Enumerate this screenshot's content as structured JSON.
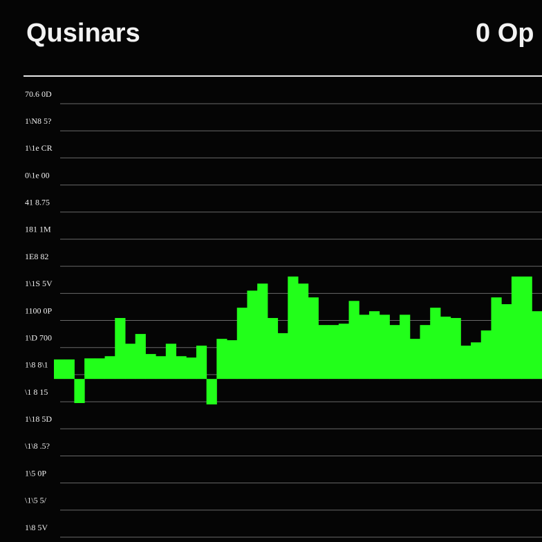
{
  "chart_data": {
    "type": "bar",
    "title": "Qusinars",
    "subtitle": "0 Op",
    "color": "#22ff1a",
    "grid": true,
    "baseline": 5.84,
    "ylim": [
      0,
      16
    ],
    "yticks": [
      {
        "value": 0,
        "label": "1\\8 5V"
      },
      {
        "value": 1,
        "label": "\\1\\5 5/"
      },
      {
        "value": 2,
        "label": "1\\5 0P"
      },
      {
        "value": 3,
        "label": "\\1\\8 .5?"
      },
      {
        "value": 4,
        "label": "1\\18 5D"
      },
      {
        "value": 5,
        "label": "\\1 8 15"
      },
      {
        "value": 6,
        "label": "1\\8 8\\1"
      },
      {
        "value": 7,
        "label": "1\\D 700"
      },
      {
        "value": 8,
        "label": "1100 0P"
      },
      {
        "value": 9,
        "label": "1\\1S 5V"
      },
      {
        "value": 10,
        "label": "1E8 82"
      },
      {
        "value": 11,
        "label": "181 1M"
      },
      {
        "value": 12,
        "label": "41 8.75"
      },
      {
        "value": 13,
        "label": "0\\1e 00"
      },
      {
        "value": 14,
        "label": "1\\1e CR"
      },
      {
        "value": 15,
        "label": "1\\N8 5?"
      },
      {
        "value": 16,
        "label": "70.6 0D"
      }
    ],
    "values": [
      6.56,
      6.56,
      4.95,
      6.6,
      6.6,
      6.68,
      8.09,
      7.14,
      7.5,
      6.76,
      6.68,
      7.14,
      6.68,
      6.63,
      7.07,
      4.9,
      7.32,
      7.27,
      8.47,
      9.1,
      9.36,
      8.09,
      7.53,
      9.62,
      9.36,
      8.85,
      7.83,
      7.83,
      7.88,
      8.72,
      8.21,
      8.34,
      8.21,
      7.83,
      8.21,
      7.32,
      7.83,
      8.47,
      8.14,
      8.09,
      7.07,
      7.19,
      7.63,
      8.85,
      8.6,
      9.62,
      9.62,
      8.34
    ]
  }
}
